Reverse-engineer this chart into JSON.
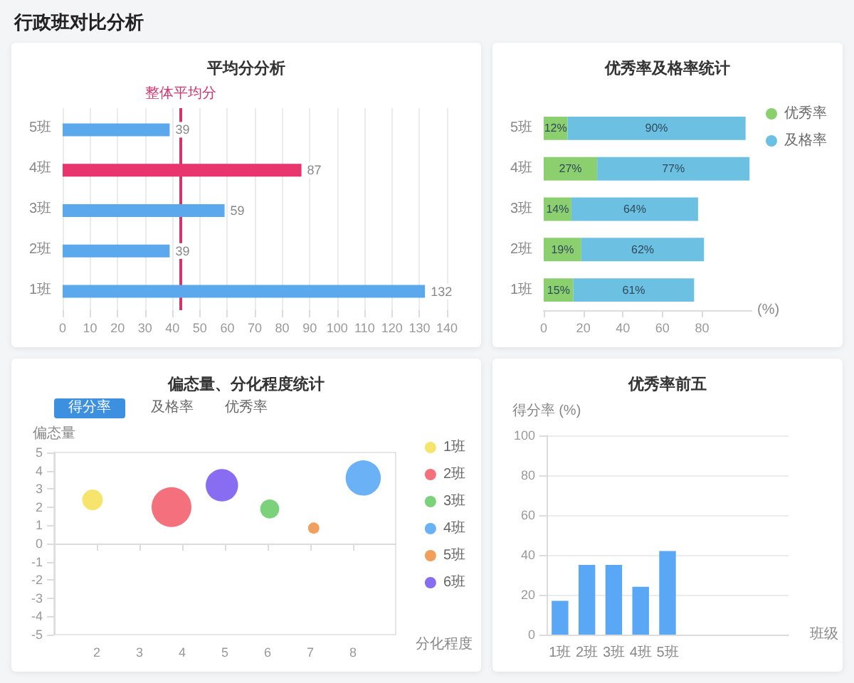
{
  "chart_data": [
    {
      "type": "other",
      "title": "行政班对比分析"
    },
    {
      "type": "bar",
      "title": "平均分分析",
      "orientation": "horizontal",
      "categories": [
        "5班",
        "4班",
        "3班",
        "2班",
        "1班"
      ],
      "values": [
        39,
        87,
        59,
        39,
        132
      ],
      "colors": [
        "#5ba8ec",
        "#e8356d",
        "#5ba8ec",
        "#5ba8ec",
        "#5ba8ec"
      ],
      "xlim": [
        0,
        140
      ],
      "xticks": [
        0,
        10,
        20,
        30,
        40,
        50,
        60,
        70,
        80,
        90,
        100,
        110,
        120,
        130,
        140
      ],
      "grid": "x",
      "data_labels": true,
      "ref_lines": [
        {
          "axis": "x",
          "value": 43,
          "label": "整体平均分",
          "color": "#d6336c"
        }
      ]
    },
    {
      "type": "bar",
      "title": "优秀率及格率统计",
      "orientation": "horizontal",
      "stacked": true,
      "categories": [
        "5班",
        "4班",
        "3班",
        "2班",
        "1班"
      ],
      "series": [
        {
          "name": "优秀率",
          "color": "#8ccf6e",
          "values": [
            12,
            27,
            14,
            19,
            15
          ],
          "value_labels": [
            "12%",
            "27%",
            "14%",
            "19%",
            "15%"
          ]
        },
        {
          "name": "及格率",
          "color": "#6cc1e3",
          "values": [
            90,
            77,
            64,
            62,
            61
          ],
          "value_labels": [
            "90%",
            "77%",
            "64%",
            "62%",
            "61%"
          ]
        }
      ],
      "xlim": [
        0,
        105
      ],
      "xticks": [
        0,
        20,
        40,
        60,
        80
      ],
      "xlabel": "(%)",
      "legend": "top right"
    },
    {
      "type": "bubble",
      "title": "偏态量、分化程度统计",
      "annotations": [
        "得分率",
        "及格率",
        "优秀率"
      ],
      "xlabel": "分化程度",
      "ylabel": "偏态量",
      "series": [
        {
          "name": "1班",
          "color": "#f5e15c",
          "x": [
            1.9
          ],
          "values": [
            2.4
          ],
          "sizes": [
            0.27
          ]
        },
        {
          "name": "2班",
          "color": "#f2606e",
          "x": [
            3.75
          ],
          "values": [
            2.0
          ],
          "sizes": [
            1
          ]
        },
        {
          "name": "3班",
          "color": "#6dcd6d",
          "x": [
            6.05
          ],
          "values": [
            1.9
          ],
          "sizes": [
            0.23
          ]
        },
        {
          "name": "4班",
          "color": "#5aa8f5",
          "x": [
            8.24
          ],
          "values": [
            3.6
          ],
          "sizes": [
            0.78
          ]
        },
        {
          "name": "5班",
          "color": "#f0954a",
          "x": [
            7.08
          ],
          "values": [
            0.85
          ],
          "sizes": [
            0.08
          ]
        },
        {
          "name": "6班",
          "color": "#7b5cf0",
          "x": [
            4.93
          ],
          "values": [
            3.2
          ],
          "sizes": [
            0.66
          ]
        }
      ],
      "xlim": [
        1,
        9
      ],
      "xticks": [
        2,
        3,
        4,
        5,
        6,
        7,
        8
      ],
      "ylim": [
        -5,
        5
      ],
      "yticks": [
        -5,
        -4,
        -3,
        -2,
        -1,
        0,
        1,
        2,
        3,
        4,
        5
      ],
      "legend": "right"
    },
    {
      "type": "bar",
      "title": "优秀率前五",
      "ylabel": "得分率 (%)",
      "xlabel": "班级",
      "categories": [
        "1班",
        "2班",
        "3班",
        "4班",
        "5班",
        null,
        null,
        null,
        null
      ],
      "values": [
        17,
        35,
        35,
        24,
        42,
        null,
        null,
        null,
        null
      ],
      "color": "#5aa8f5",
      "ylim": [
        0,
        100
      ],
      "yticks": [
        0,
        20,
        40,
        60,
        80,
        100
      ],
      "grid": "y"
    }
  ]
}
